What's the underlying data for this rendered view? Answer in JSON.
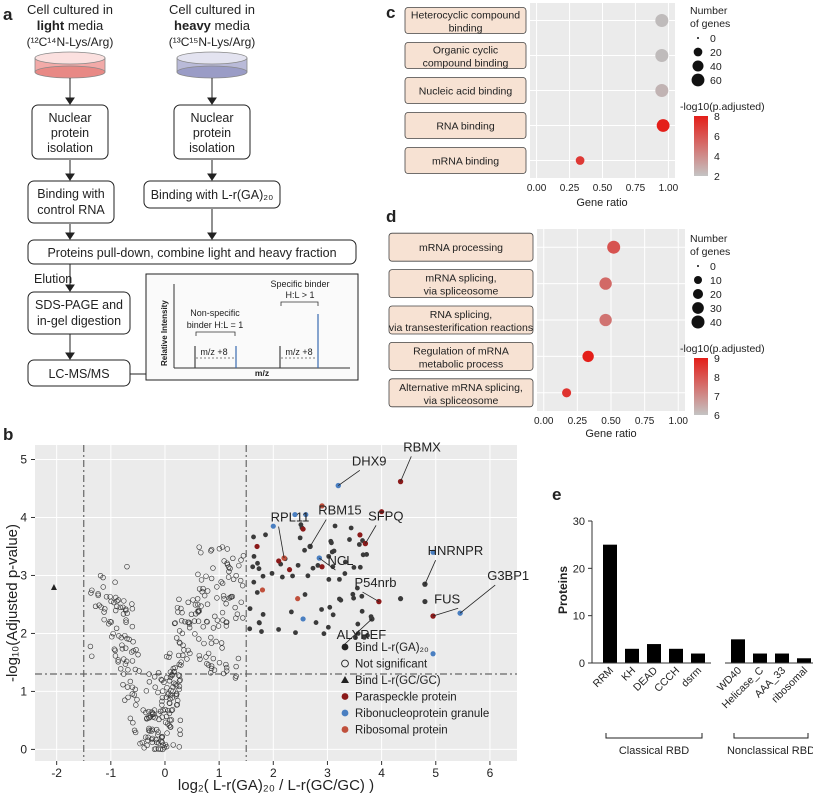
{
  "panel_labels": {
    "a": "a",
    "b": "b",
    "c": "c",
    "d": "d",
    "e": "e"
  },
  "workflow": {
    "light_title1": "Cell cultured in",
    "light_title2": "light",
    "light_title2b": " media",
    "light_title3": "(¹²C¹⁴N-Lys/Arg)",
    "heavy_title1": "Cell cultured in",
    "heavy_title2": "heavy",
    "heavy_title2b": " media",
    "heavy_title3": "(¹³C¹⁵N-Lys/Arg)",
    "nuclear1": "Nuclear",
    "nuclear2": "protein",
    "nuclear3": "isolation",
    "binding_control1": "Binding with",
    "binding_control2": "control RNA",
    "binding_ga": "Binding with L-r(GA)₂₀",
    "pulldown": "Proteins pull-down, combine light and heavy fraction",
    "elution": "Elution",
    "sds1": "SDS-PAGE and",
    "sds2": "in-gel digestion",
    "lcms": "LC-MS/MS",
    "specific1": "Specific binder",
    "specific2": "H:L > 1",
    "nonspecific1": "Non-specific",
    "nonspecific2": "binder H:L = 1",
    "mz8": "m/z +8",
    "rel_intensity": "Relative Intensity",
    "mz": "m/z"
  },
  "chart_data": [
    {
      "id": "b",
      "type": "scatter",
      "xlabel": "log₂( L-r(GA)₂₀ / L-r(GC/GC) )",
      "ylabel": "-log₁₀(Adjusted p-value)",
      "xlim": [
        -2.4,
        6.5
      ],
      "ylim": [
        -0.2,
        5.25
      ],
      "xticks": [
        "-2",
        "-1",
        "0",
        "1",
        "2",
        "3",
        "4",
        "5",
        "6"
      ],
      "yticks": [
        "0",
        "1",
        "2",
        "3",
        "4",
        "5"
      ],
      "thresholds": {
        "x": [
          -1.5,
          1.5
        ],
        "y": 1.3
      },
      "colors": {
        "bind": "#3a3a3a",
        "paraspeckle": "#8b1a1a",
        "rnp": "#4a7fc1",
        "ribosomal": "#c0503c",
        "background": "#ebebeb"
      },
      "legend": [
        {
          "label": "Bind L-r(GA)₂₀",
          "marker": "filled",
          "color": "#222222"
        },
        {
          "label": "Not significant",
          "marker": "open",
          "color": "#222222"
        },
        {
          "label": "Bind L-r(GC/GC)",
          "marker": "triangle",
          "color": "#222222"
        },
        {
          "label": "Paraspeckle protein",
          "marker": "filled",
          "color": "#8b1a1a"
        },
        {
          "label": "Ribonucleoprotein granule",
          "marker": "filled",
          "color": "#4a7fc1"
        },
        {
          "label": "Ribosomal protein",
          "marker": "filled",
          "color": "#c0503c"
        }
      ],
      "labeled_points": [
        {
          "label": "DHX9",
          "x": 3.2,
          "y": 4.55,
          "group": "rnp"
        },
        {
          "label": "RBMX",
          "x": 4.35,
          "y": 4.62,
          "group": "paraspeckle"
        },
        {
          "label": "RPL11",
          "x": 2.2,
          "y": 3.3,
          "group": "ribosomal"
        },
        {
          "label": "RBM15",
          "x": 2.68,
          "y": 3.5,
          "group": "bind"
        },
        {
          "label": "SFPQ",
          "x": 3.7,
          "y": 3.55,
          "group": "paraspeckle"
        },
        {
          "label": "NCL",
          "x": 2.85,
          "y": 3.3,
          "group": "rnp"
        },
        {
          "label": "HNRNPR",
          "x": 4.8,
          "y": 2.85,
          "group": "bind"
        },
        {
          "label": "P54nrb",
          "x": 3.95,
          "y": 2.55,
          "group": "paraspeckle"
        },
        {
          "label": "G3BP1",
          "x": 5.45,
          "y": 2.35,
          "group": "rnp"
        },
        {
          "label": "FUS",
          "x": 4.95,
          "y": 2.3,
          "group": "paraspeckle"
        },
        {
          "label": "ALYREF",
          "x": 3.82,
          "y": 2.25,
          "group": "bind"
        }
      ]
    },
    {
      "id": "c",
      "type": "scatter",
      "xlabel": "Gene ratio",
      "xlim": [
        -0.05,
        1.05
      ],
      "xticks": [
        "0.00",
        "0.25",
        "0.50",
        "0.75",
        "1.00"
      ],
      "categories": [
        "Heterocyclic compound binding",
        "Organic cyclic compound binding",
        "Nucleic acid binding",
        "RNA binding",
        "mRNA binding"
      ],
      "gene_ratio": [
        0.95,
        0.95,
        0.95,
        0.96,
        0.33
      ],
      "count": [
        62,
        62,
        62,
        60,
        20
      ],
      "neglog10_padj": [
        2.1,
        2.1,
        2.4,
        8.2,
        7.0
      ],
      "size_legend_title": "Number of genes",
      "size_legend": [
        "0",
        "20",
        "40",
        "60"
      ],
      "color_legend_title": "-log10(p.adjusted)",
      "color_ticks": [
        "8",
        "6",
        "4",
        "2"
      ]
    },
    {
      "id": "d",
      "type": "scatter",
      "xlabel": "Gene ratio",
      "xlim": [
        -0.05,
        1.05
      ],
      "xticks": [
        "0.00",
        "0.25",
        "0.50",
        "0.75",
        "1.00"
      ],
      "categories": [
        "mRNA processing",
        "mRNA splicing, via spliceosome",
        "RNA splicing, via transesterification reactions",
        "Regulation of mRNA metabolic process",
        "Alternative mRNA splicing, via spliceosome"
      ],
      "gene_ratio": [
        0.52,
        0.46,
        0.46,
        0.33,
        0.17
      ],
      "count": [
        40,
        35,
        35,
        28,
        15
      ],
      "neglog10_padj": [
        8.0,
        7.6,
        7.4,
        9.0,
        8.6
      ],
      "size_legend_title": "Number of genes",
      "size_legend": [
        "0",
        "10",
        "20",
        "30",
        "40"
      ],
      "color_legend_title": "-log10(p.adjusted)",
      "color_ticks": [
        "9",
        "8",
        "7",
        "6"
      ]
    },
    {
      "id": "e",
      "type": "bar",
      "ylabel": "Proteins",
      "ylim": [
        0,
        30
      ],
      "yticks": [
        "0",
        "10",
        "20",
        "30"
      ],
      "categories": [
        "RRM",
        "KH",
        "DEAD",
        "CCCH",
        "dsrm",
        "WD40",
        "Helicase_C",
        "AAA_33",
        "ribosomal"
      ],
      "values": [
        25,
        3,
        4,
        3,
        2,
        5,
        2,
        2,
        1
      ],
      "groups": [
        {
          "label": "Classical RBD",
          "count": 5
        },
        {
          "label": "Nonclassical RBD",
          "count": 4
        }
      ]
    }
  ]
}
